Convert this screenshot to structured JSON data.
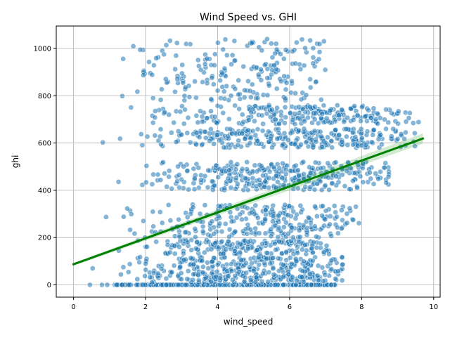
{
  "chart_data": {
    "type": "scatter",
    "title": "Wind Speed vs. GHI",
    "xlabel": "wind_speed",
    "ylabel": "ghi",
    "xlim": [
      -0.48,
      10.18
    ],
    "ylim": [
      -52,
      1095
    ],
    "xticks": [
      0,
      2,
      4,
      6,
      8,
      10
    ],
    "yticks": [
      0,
      200,
      400,
      600,
      800,
      1000
    ],
    "grid": true,
    "point_color": "#1f77b4",
    "regression": {
      "color": "#008000",
      "band_color": "#2ca02c",
      "x": [
        0,
        9.7
      ],
      "y": [
        87,
        619
      ],
      "band_halfwidth": [
        6,
        22
      ]
    },
    "points": {
      "approx_count": 5000,
      "clusters": [
        {
          "name": "night",
          "x_range": [
            0.0,
            7.3
          ],
          "ghi_values": [
            0
          ],
          "weight": 0.28
        },
        {
          "name": "low",
          "x_range": [
            0.0,
            7.5
          ],
          "ghi_range": [
            10,
            120
          ],
          "weight": 0.14
        },
        {
          "name": "band-160",
          "x_range": [
            0.2,
            7.3
          ],
          "ghi_range": [
            130,
            190
          ],
          "weight": 0.07
        },
        {
          "name": "band-300",
          "x_range": [
            0.2,
            8.0
          ],
          "ghi_range": [
            200,
            340
          ],
          "weight": 0.1
        },
        {
          "name": "band-480",
          "x_range": [
            0.2,
            8.8
          ],
          "ghi_range": [
            400,
            520
          ],
          "weight": 0.13
        },
        {
          "name": "band-620",
          "x_range": [
            0.2,
            9.5
          ],
          "ghi_range": [
            580,
            660
          ],
          "weight": 0.11
        },
        {
          "name": "band-720",
          "x_range": [
            0.2,
            9.6
          ],
          "ghi_range": [
            680,
            760
          ],
          "weight": 0.09
        },
        {
          "name": "high",
          "x_range": [
            0.2,
            7.0
          ],
          "ghi_range": [
            780,
            1040
          ],
          "weight": 0.08
        }
      ]
    }
  }
}
